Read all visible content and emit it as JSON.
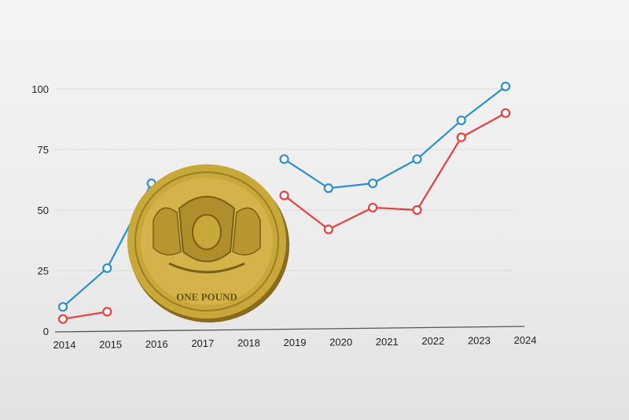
{
  "chart_data": {
    "type": "line",
    "categories": [
      "2014",
      "2015",
      "2016",
      "2017",
      "2018",
      "2019",
      "2020",
      "2021",
      "2022",
      "2023",
      "2024"
    ],
    "x_tick_labels": [
      "2014",
      "2015",
      "2016",
      "2017",
      "2018",
      "2019",
      "2020",
      "2021",
      "2022",
      "2023",
      "2024"
    ],
    "y_tick_labels": [
      "0",
      "25",
      "50",
      "75",
      "100"
    ],
    "ylim": [
      0,
      100
    ],
    "grid": true,
    "series": [
      {
        "color": "#2a8fd0",
        "values": [
          10,
          26,
          61,
          null,
          null,
          71,
          59,
          61,
          71,
          87,
          101
        ]
      },
      {
        "color": "#e8403f",
        "values": [
          5,
          8,
          null,
          null,
          null,
          56,
          42,
          51,
          50,
          80,
          90
        ]
      }
    ],
    "title": "",
    "xlabel": "",
    "ylabel": ""
  },
  "coin": {
    "inscription": "ONE POUND",
    "color": "#c9a83a"
  }
}
